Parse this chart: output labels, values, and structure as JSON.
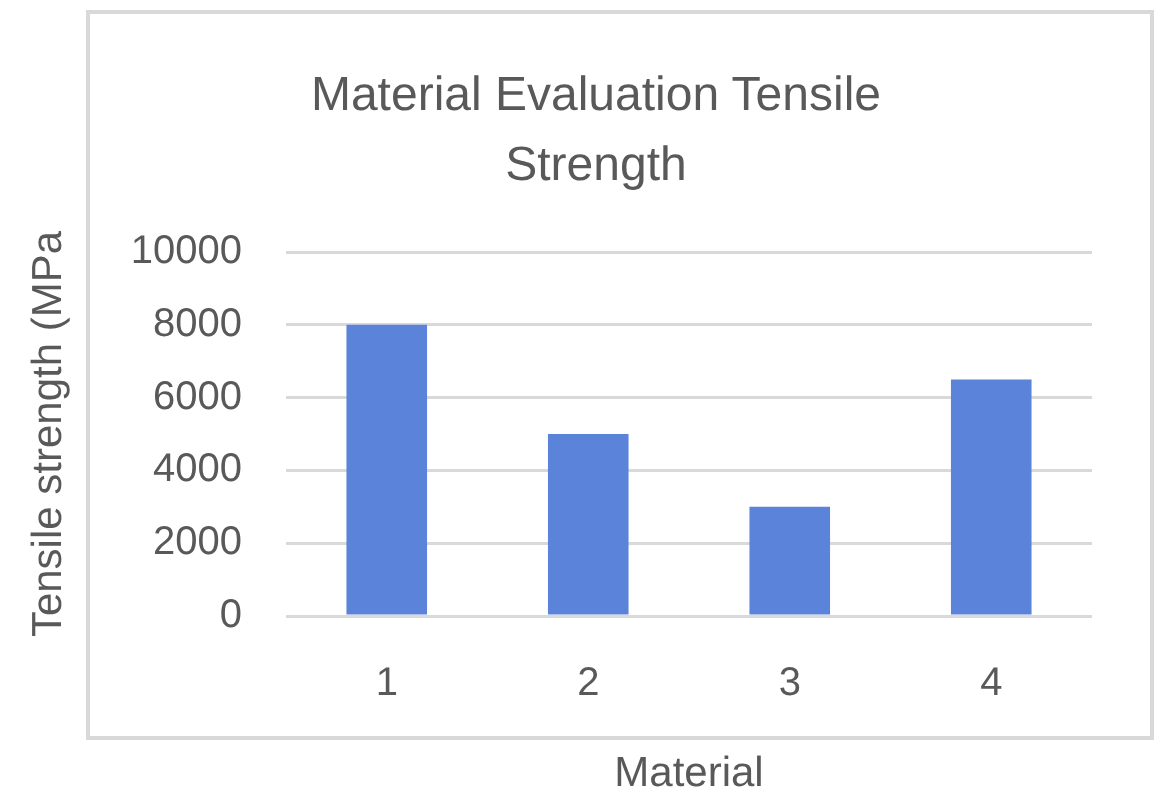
{
  "chart_data": {
    "type": "bar",
    "title": "Material Evaluation Tensile Strength",
    "xlabel": "Material",
    "ylabel": "Tensile strength (MPa",
    "categories": [
      "1",
      "2",
      "3",
      "4"
    ],
    "values": [
      8000,
      5000,
      3000,
      6500
    ],
    "color": "#5b83da",
    "ylim": [
      0,
      10000
    ],
    "yticks": [
      0,
      2000,
      4000,
      6000,
      8000,
      10000
    ],
    "grid": "y"
  }
}
